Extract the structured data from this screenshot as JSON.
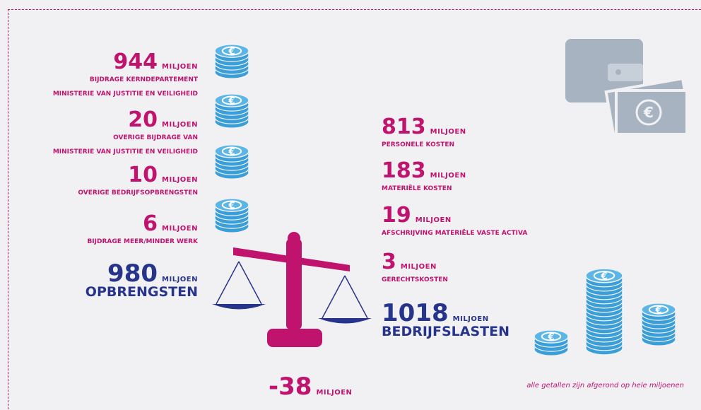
{
  "income": {
    "items": [
      {
        "amount": "944",
        "unit": "MILJOEN",
        "lines": [
          "BIJDRAGE KERNDEPARTEMENT",
          "MINISTERIE VAN JUSTITIE EN VEILIGHEID"
        ]
      },
      {
        "amount": "20",
        "unit": "MILJOEN",
        "lines": [
          "OVERIGE BIJDRAGE VAN",
          "MINISTERIE VAN JUSTITIE EN VEILIGHEID"
        ]
      },
      {
        "amount": "10",
        "unit": "MILJOEN",
        "lines": [
          "OVERIGE BEDRIJFSOPBRENGSTEN"
        ]
      },
      {
        "amount": "6",
        "unit": "MILJOEN",
        "lines": [
          "BIJDRAGE MEER/MINDER WERK"
        ]
      }
    ],
    "total": {
      "amount": "980",
      "unit": "MILJOEN",
      "label": "OPBRENGSTEN"
    }
  },
  "costs": {
    "items": [
      {
        "amount": "813",
        "unit": "MILJOEN",
        "lines": [
          "PERSONELE KOSTEN"
        ]
      },
      {
        "amount": "183",
        "unit": "MILJOEN",
        "lines": [
          "MATERIËLE KOSTEN"
        ]
      },
      {
        "amount": "19",
        "unit": "MILJOEN",
        "lines": [
          "AFSCHRIJVING MATERIËLE VASTE ACTIVA"
        ]
      },
      {
        "amount": "3",
        "unit": "MILJOEN",
        "lines": [
          "GERECHTSKOSTEN"
        ]
      }
    ],
    "total": {
      "amount": "1018",
      "unit": "MILJOEN",
      "label": "BEDRIJFSLASTEN"
    }
  },
  "result": {
    "amount": "-38",
    "unit": "MILJOEN"
  },
  "footnote": "alle getallen zijn afgerond op hele miljoenen"
}
